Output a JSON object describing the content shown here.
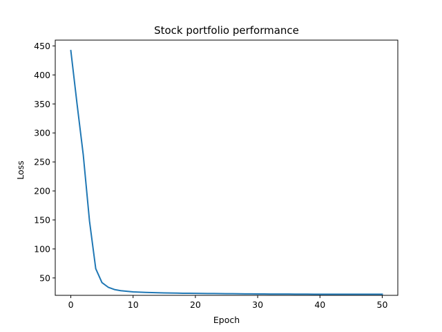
{
  "chart_data": {
    "type": "line",
    "title": "Stock portfolio performance",
    "xlabel": "Epoch",
    "ylabel": "Loss",
    "xlim": [
      -2.5,
      52.5
    ],
    "ylim": [
      20,
      460
    ],
    "xticks": [
      0,
      10,
      20,
      30,
      40,
      50
    ],
    "yticks": [
      50,
      100,
      150,
      200,
      250,
      300,
      350,
      400,
      450
    ],
    "grid": false,
    "legend": "none",
    "colors": {
      "line": "#1f77b4",
      "axes": "#000000",
      "background": "#ffffff"
    },
    "series": [
      {
        "x": [
          0,
          1,
          2,
          3,
          4,
          5,
          6,
          7,
          8,
          9,
          10,
          11,
          12,
          13,
          14,
          15,
          16,
          17,
          18,
          19,
          20,
          21,
          22,
          23,
          24,
          25,
          26,
          27,
          28,
          29,
          30,
          31,
          32,
          33,
          34,
          35,
          36,
          37,
          38,
          39,
          40,
          41,
          42,
          43,
          44,
          45,
          46,
          47,
          48,
          49,
          50
        ],
        "values": [
          442,
          350,
          262,
          148,
          66,
          42,
          34,
          30,
          28,
          27,
          26,
          25.5,
          25,
          24.7,
          24.4,
          24.2,
          24,
          23.8,
          23.6,
          23.5,
          23.4,
          23.3,
          23.2,
          23.1,
          23,
          22.9,
          22.8,
          22.7,
          22.6,
          22.5,
          22.4,
          22.4,
          22.3,
          22.3,
          22.2,
          22.2,
          22.1,
          22.1,
          22.1,
          22,
          22,
          22,
          22,
          22,
          22,
          22,
          22,
          22,
          22,
          22,
          22
        ]
      }
    ]
  }
}
